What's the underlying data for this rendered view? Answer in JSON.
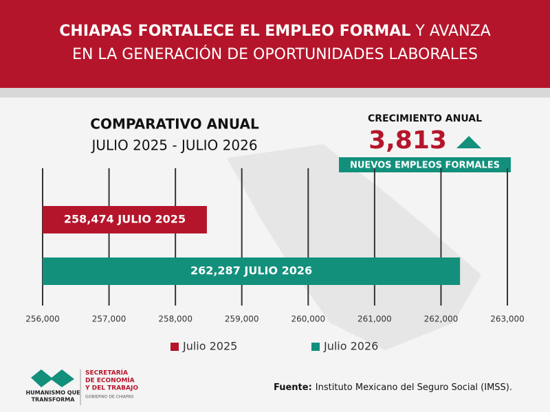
{
  "header": {
    "title_bold": "CHIAPAS FORTALECE EL EMPLEO FORMAL",
    "title_rest": "Y AVANZA",
    "title_line2": "EN LA GENERACIÓN DE OPORTUNIDADES LABORALES"
  },
  "chart_data": {
    "type": "hbar",
    "title": "COMPARATIVO ANUAL",
    "subtitle": "JULIO 2025 - JULIO 2026",
    "growth": {
      "heading": "CRECIMIENTO ANUAL",
      "value": "3,813",
      "caption": "NUEVOS EMPLEOS FORMALES"
    },
    "series": [
      {
        "name": "Julio 2025",
        "color": "#b5152b",
        "values": [
          258474
        ],
        "value_labels": [
          "258,474 JULIO 2025"
        ]
      },
      {
        "name": "Julio 2026",
        "color": "#12907c",
        "values": [
          262287
        ],
        "value_labels": [
          "262,287 JULIO 2026"
        ]
      }
    ],
    "xlim": [
      256000,
      263000
    ],
    "xticks": [
      {
        "value": 256000,
        "label": "256,000"
      },
      {
        "value": 257000,
        "label": "257,000"
      },
      {
        "value": 258000,
        "label": "258,000"
      },
      {
        "value": 259000,
        "label": "259,000"
      },
      {
        "value": 260000,
        "label": "260,000"
      },
      {
        "value": 261000,
        "label": "261,000"
      },
      {
        "value": 262000,
        "label": "262,000"
      },
      {
        "value": 263000,
        "label": "263,000"
      }
    ],
    "grid": true,
    "legend": "bottom"
  },
  "footer": {
    "source_label": "Fuente:",
    "source": "Instituto Mexicano del Seguro Social (IMSS).",
    "logo1": "HUMANISMO QUE",
    "logo1b": "TRANSFORMA",
    "logo2a": "SECRETARÍA",
    "logo2b": "DE ECONOMÍA",
    "logo2c": "Y DEL TRABAJO",
    "logo2d": "GOBIERNO DE CHIAPAS"
  }
}
